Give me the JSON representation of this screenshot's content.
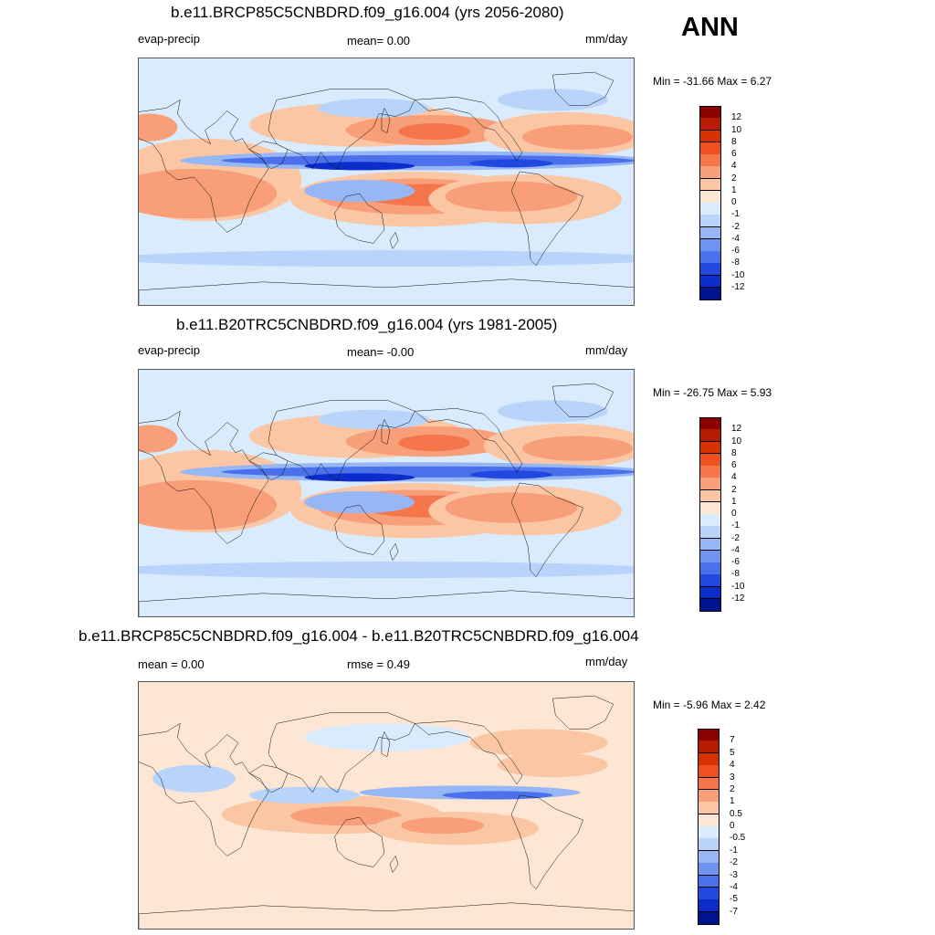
{
  "header": {
    "season": "ANN"
  },
  "panels": [
    {
      "title": "b.e11.BRCP85C5CNBDRD.f09_g16.004 (yrs 2056-2080)",
      "left_label": "evap-precip",
      "center_label": "mean=   0.00",
      "units": "mm/day",
      "minmax": "Min = -31.66 Max =    6.27",
      "colorbar": {
        "labels": [
          "12",
          "10",
          "8",
          "6",
          "4",
          "2",
          "1",
          "0",
          "-1",
          "-2",
          "-4",
          "-6",
          "-8",
          "-10",
          "-12"
        ],
        "colors": [
          "#8b0000",
          "#b81c00",
          "#d83100",
          "#ef5020",
          "#f4764a",
          "#f89e78",
          "#fbc6a4",
          "#fde7d4",
          "#d9ebfd",
          "#b8d4fb",
          "#97b6f6",
          "#6f94f0",
          "#4a70eb",
          "#2149e0",
          "#0c2ccc",
          "#00138e"
        ]
      }
    },
    {
      "title": "b.e11.B20TRC5CNBDRD.f09_g16.004 (yrs 1981-2005)",
      "left_label": "evap-precip",
      "center_label": "mean=  -0.00",
      "units": "mm/day",
      "minmax": "Min = -26.75 Max =    5.93",
      "colorbar": {
        "labels": [
          "12",
          "10",
          "8",
          "6",
          "4",
          "2",
          "1",
          "0",
          "-1",
          "-2",
          "-4",
          "-6",
          "-8",
          "-10",
          "-12"
        ],
        "colors": [
          "#8b0000",
          "#b81c00",
          "#d83100",
          "#ef5020",
          "#f4764a",
          "#f89e78",
          "#fbc6a4",
          "#fde7d4",
          "#d9ebfd",
          "#b8d4fb",
          "#97b6f6",
          "#6f94f0",
          "#4a70eb",
          "#2149e0",
          "#0c2ccc",
          "#00138e"
        ]
      }
    },
    {
      "title": "b.e11.BRCP85C5CNBDRD.f09_g16.004 - b.e11.B20TRC5CNBDRD.f09_g16.004",
      "left_label": "mean =   0.00",
      "center_label": "rmse =   0.49",
      "units": "mm/day",
      "minmax": "Min =  -5.96 Max =    2.42",
      "colorbar": {
        "labels": [
          "7",
          "5",
          "4",
          "3",
          "2",
          "1",
          "0.5",
          "0",
          "-0.5",
          "-1",
          "-2",
          "-3",
          "-4",
          "-5",
          "-7"
        ],
        "colors": [
          "#8b0000",
          "#b81c00",
          "#d83100",
          "#ef5020",
          "#f4764a",
          "#f89e78",
          "#fbc6a4",
          "#fde7d4",
          "#d9ebfd",
          "#b8d4fb",
          "#97b6f6",
          "#6f94f0",
          "#4a70eb",
          "#2149e0",
          "#0c2ccc",
          "#00138e"
        ]
      }
    }
  ],
  "chart_data": [
    {
      "type": "heatmap",
      "variable": "evap-precip",
      "units": "mm/day",
      "mean": 0.0,
      "min": -31.66,
      "max": 6.27,
      "levels": [
        -12,
        -10,
        -8,
        -6,
        -4,
        -2,
        -1,
        0,
        1,
        2,
        4,
        6,
        8,
        10,
        12
      ]
    },
    {
      "type": "heatmap",
      "variable": "evap-precip",
      "units": "mm/day",
      "mean": -0.0,
      "min": -26.75,
      "max": 5.93,
      "levels": [
        -12,
        -10,
        -8,
        -6,
        -4,
        -2,
        -1,
        0,
        1,
        2,
        4,
        6,
        8,
        10,
        12
      ]
    },
    {
      "type": "heatmap",
      "units": "mm/day",
      "mean": 0.0,
      "rmse": 0.49,
      "min": -5.96,
      "max": 2.42,
      "levels": [
        -7,
        -5,
        -4,
        -3,
        -2,
        -1,
        -0.5,
        0,
        0.5,
        1,
        2,
        3,
        4,
        5,
        7
      ]
    }
  ]
}
